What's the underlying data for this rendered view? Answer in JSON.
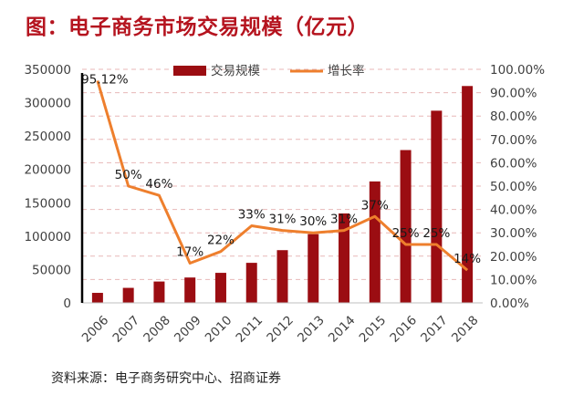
{
  "title": "图：电子商务市场交易规模（亿元）",
  "source": "资料来源：电子商务研究中心、招商证券",
  "chart_data": {
    "type": "bar",
    "categories": [
      "2006",
      "2007",
      "2008",
      "2009",
      "2010",
      "2011",
      "2012",
      "2013",
      "2014",
      "2015",
      "2016",
      "2017",
      "2018"
    ],
    "series": [
      {
        "name": "交易规模",
        "type": "bar",
        "axis": "left",
        "color": "#9b0d12",
        "values": [
          15000,
          22500,
          32000,
          38000,
          45000,
          60000,
          79000,
          103000,
          134000,
          182000,
          229000,
          288000,
          325000
        ]
      },
      {
        "name": "增长率",
        "type": "line",
        "axis": "right",
        "color": "#ee7f2d",
        "values": [
          95.12,
          50,
          46,
          17,
          22,
          33,
          31,
          30,
          31,
          37,
          25,
          25,
          14
        ],
        "labels": [
          "95.12%",
          "50%",
          "46%",
          "17%",
          "22%",
          "33%",
          "31%",
          "30%",
          "31%",
          "37%",
          "25%",
          "25%",
          "14%"
        ]
      }
    ],
    "y_left": {
      "min": 0,
      "max": 350000,
      "ticks": [
        "0",
        "50000",
        "100000",
        "150000",
        "200000",
        "250000",
        "300000",
        "350000"
      ]
    },
    "y_right": {
      "min": 0,
      "max": 100,
      "ticks": [
        "0.00%",
        "10.00%",
        "20.00%",
        "30.00%",
        "40.00%",
        "50.00%",
        "60.00%",
        "70.00%",
        "80.00%",
        "90.00%",
        "100.00%"
      ]
    },
    "grid": "dashed horizontal",
    "legend_position": "top"
  }
}
